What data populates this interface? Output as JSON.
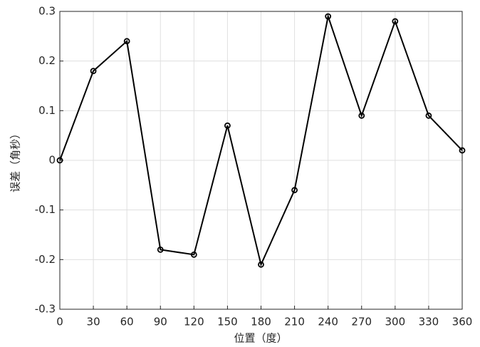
{
  "chart_data": {
    "type": "line",
    "x_label": "位置（度）",
    "y_label": "误差（角秒）",
    "x": [
      0,
      30,
      60,
      90,
      120,
      150,
      180,
      210,
      240,
      270,
      300,
      330,
      360
    ],
    "values": [
      0,
      0.18,
      0.24,
      -0.18,
      -0.19,
      0.07,
      -0.21,
      -0.06,
      0.29,
      0.09,
      0.28,
      0.09,
      0.02
    ],
    "color": "#000000",
    "xlim": [
      0,
      360
    ],
    "xticks": [
      0,
      30,
      60,
      90,
      120,
      150,
      180,
      210,
      240,
      270,
      300,
      330,
      360
    ],
    "ylim": [
      -0.3,
      0.3
    ],
    "yticks": [
      -0.3,
      -0.2,
      -0.1,
      0,
      0.1,
      0.2,
      0.3
    ],
    "grid": true,
    "markers": true
  }
}
